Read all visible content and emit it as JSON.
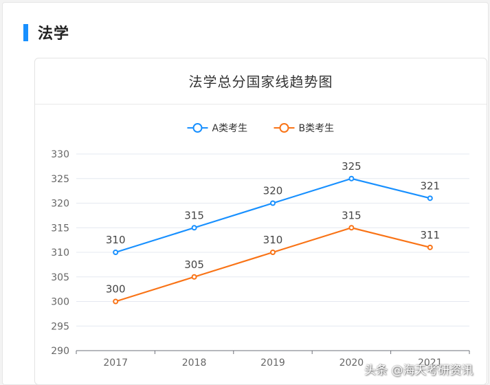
{
  "section": {
    "title": "法学"
  },
  "colors": {
    "accent": "#1890ff",
    "series_a": "#1890ff",
    "series_b": "#f97316"
  },
  "chart_data": {
    "type": "line",
    "title": "法学总分国家线趋势图",
    "categories": [
      "2017",
      "2018",
      "2019",
      "2020",
      "2021"
    ],
    "series": [
      {
        "name": "A类考生",
        "values": [
          310,
          315,
          320,
          325,
          321
        ]
      },
      {
        "name": "B类考生",
        "values": [
          300,
          305,
          310,
          315,
          311
        ]
      }
    ],
    "y_ticks": [
      290,
      295,
      300,
      305,
      310,
      315,
      320,
      325,
      330
    ],
    "ylim": [
      290,
      330
    ],
    "grid": true,
    "legend_position": "top-center",
    "data_labels": true
  },
  "watermark": "头条 @海天考研资讯"
}
